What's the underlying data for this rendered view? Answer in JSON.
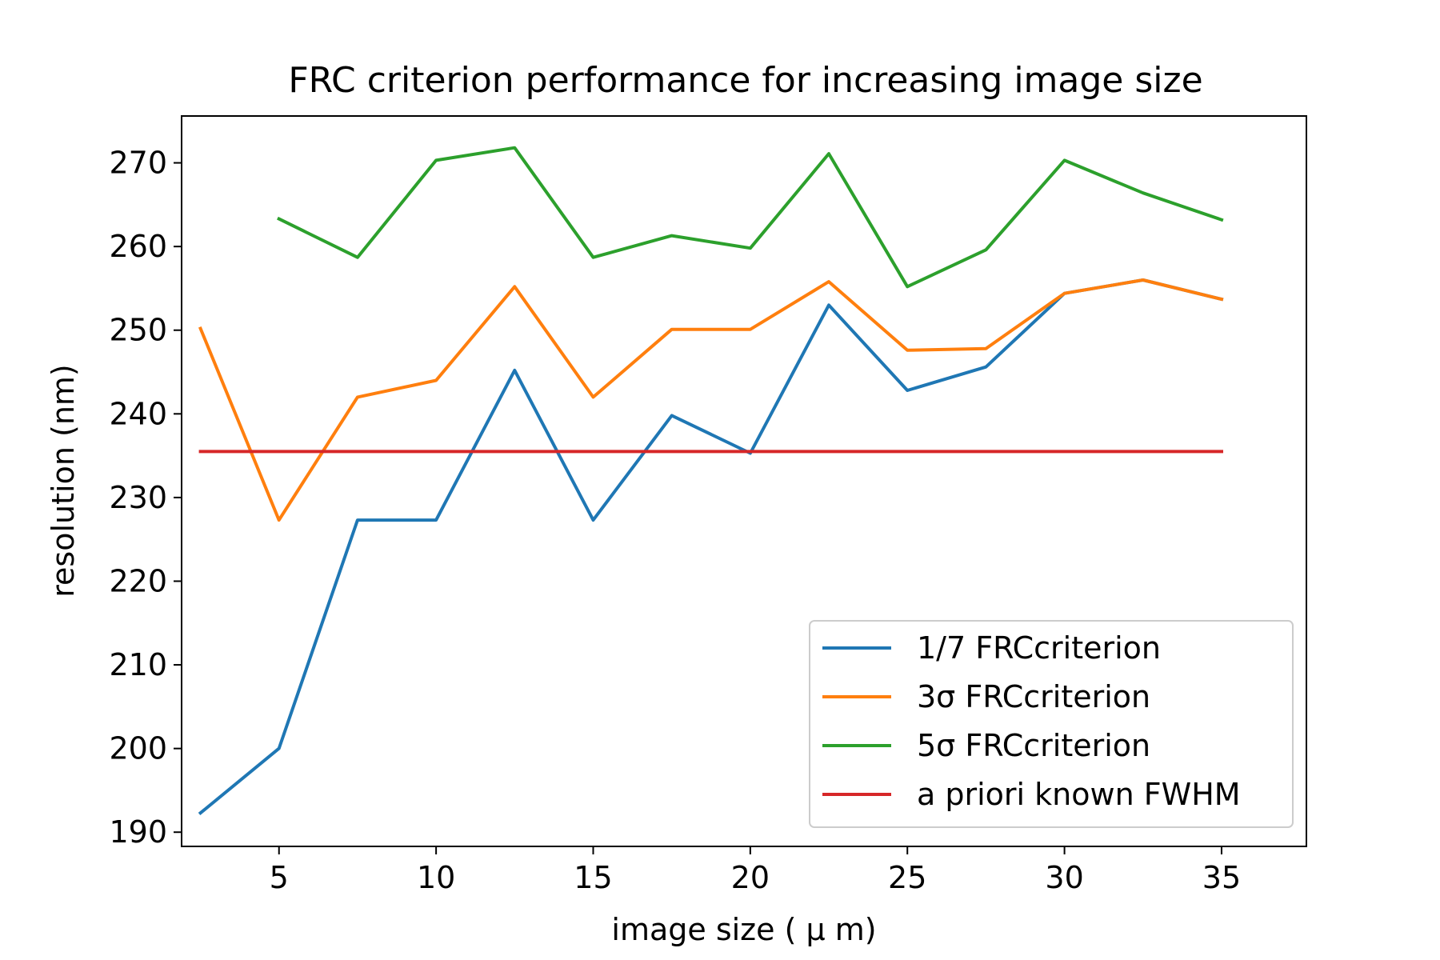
{
  "chart_data": {
    "type": "line",
    "title": "FRC criterion performance for increasing image size",
    "xlabel": "image size ( μ m)",
    "ylabel": "resolution (nm)",
    "xlim": [
      1.9,
      37.7
    ],
    "ylim": [
      188.3,
      275.6
    ],
    "xticks": [
      5,
      10,
      15,
      20,
      25,
      30,
      35
    ],
    "yticks": [
      190,
      200,
      210,
      220,
      230,
      240,
      250,
      260,
      270
    ],
    "grid": false,
    "legend_position": "lower-right",
    "series": [
      {
        "name": "1/7 FRCcriterion",
        "color": "#1f77b4",
        "x": [
          2.5,
          5,
          7.5,
          10,
          12.5,
          15,
          17.5,
          20,
          22.5,
          25,
          27.5,
          30,
          32.5,
          35
        ],
        "y": [
          192.3,
          200.0,
          227.3,
          227.3,
          245.2,
          227.3,
          239.8,
          235.3,
          253.0,
          242.8,
          245.6,
          254.4,
          256.0,
          253.7
        ]
      },
      {
        "name": "3σ FRCcriterion",
        "color": "#ff7f0e",
        "x": [
          2.5,
          5,
          7.5,
          10,
          12.5,
          15,
          17.5,
          20,
          22.5,
          25,
          27.5,
          30,
          32.5,
          35
        ],
        "y": [
          250.2,
          227.3,
          242.0,
          244.0,
          255.2,
          242.0,
          250.1,
          250.1,
          255.8,
          247.6,
          247.8,
          254.4,
          256.0,
          253.7
        ]
      },
      {
        "name": "5σ FRCcriterion",
        "color": "#2ca02c",
        "x": [
          5,
          7.5,
          10,
          12.5,
          15,
          17.5,
          20,
          22.5,
          25,
          27.5,
          30,
          32.5,
          35
        ],
        "y": [
          263.3,
          258.7,
          270.3,
          271.8,
          258.7,
          261.3,
          259.8,
          271.1,
          255.2,
          259.6,
          270.3,
          266.4,
          263.2
        ]
      },
      {
        "name": "a priori known FWHM",
        "color": "#d62728",
        "x": [
          2.5,
          35
        ],
        "y": [
          235.5,
          235.5
        ]
      }
    ]
  }
}
